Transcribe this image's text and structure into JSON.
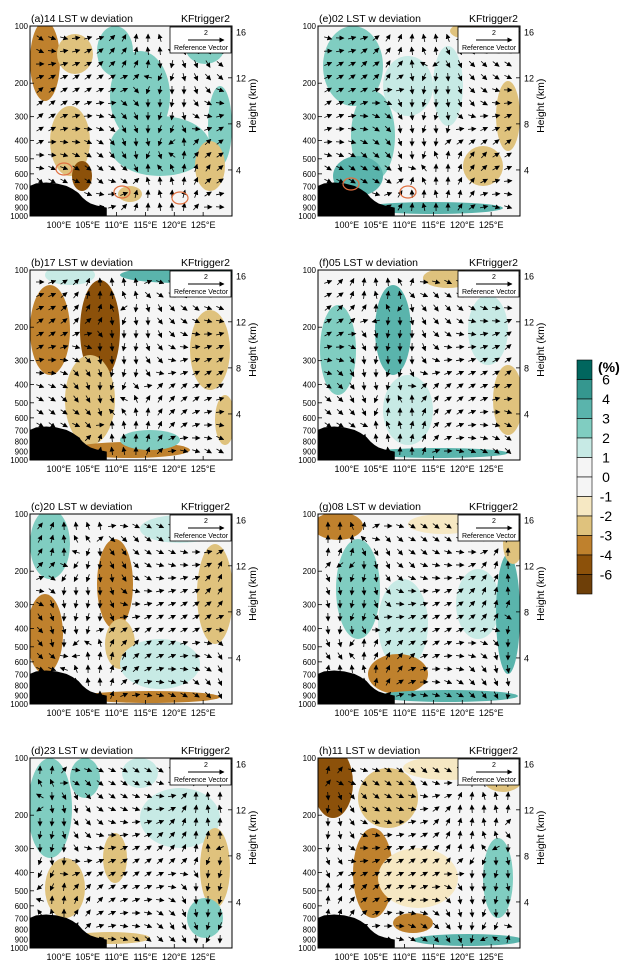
{
  "figure": {
    "colorbar": {
      "unit": "(%)",
      "labels": [
        "6",
        "4",
        "3",
        "2",
        "1",
        "0",
        "-1",
        "-2",
        "-3",
        "-4",
        "-6"
      ],
      "colors": [
        "#01665e",
        "#35978f",
        "#5ab4ac",
        "#80cdc1",
        "#c7eae5",
        "#f5f5f5",
        "#f5f5f5",
        "#f6e8c3",
        "#dfc27d",
        "#bf812d",
        "#8c510a",
        "#6e3f08"
      ]
    },
    "pressure_ticks": [
      "100",
      "200",
      "300",
      "400",
      "500",
      "600",
      "700",
      "800",
      "900",
      "1000"
    ],
    "height_ticks": [
      "16",
      "12",
      "8",
      "4"
    ],
    "height_label": "Height (km)",
    "lon_ticks": [
      "100°E",
      "105°E",
      "110°E",
      "115°E",
      "120°E",
      "125°E"
    ],
    "reference_vector": {
      "value": "2",
      "label": "Reference Vector"
    },
    "model_label": "KFtrigger2",
    "circle_labels": [
      "L1",
      "L2",
      "L3"
    ]
  },
  "chart_data": [
    {
      "type": "heatmap",
      "panel": "a",
      "title": "(a)14 LST w deviation",
      "model": "KFtrigger2",
      "x_range": [
        95,
        130
      ],
      "x_unit": "°E",
      "y_range_hPa": [
        1000,
        100
      ],
      "y_scale": "log",
      "variable": "w deviation (%)",
      "overlay": "wind vectors",
      "annotations": [
        "L1",
        "L2",
        "L3"
      ]
    },
    {
      "type": "heatmap",
      "panel": "e",
      "title": "(e)02 LST w deviation",
      "model": "KFtrigger2",
      "x_range": [
        95,
        130
      ],
      "x_unit": "°E",
      "y_range_hPa": [
        1000,
        100
      ],
      "y_scale": "log",
      "variable": "w deviation (%)",
      "overlay": "wind vectors",
      "annotations": [
        "L1",
        "L2"
      ]
    },
    {
      "type": "heatmap",
      "panel": "b",
      "title": "(b)17 LST w deviation",
      "model": "KFtrigger2",
      "x_range": [
        95,
        130
      ],
      "x_unit": "°E",
      "y_range_hPa": [
        1000,
        100
      ],
      "y_scale": "log",
      "variable": "w deviation (%)",
      "overlay": "wind vectors"
    },
    {
      "type": "heatmap",
      "panel": "f",
      "title": "(f)05 LST w deviation",
      "model": "KFtrigger2",
      "x_range": [
        95,
        130
      ],
      "x_unit": "°E",
      "y_range_hPa": [
        1000,
        100
      ],
      "y_scale": "log",
      "variable": "w deviation (%)",
      "overlay": "wind vectors"
    },
    {
      "type": "heatmap",
      "panel": "c",
      "title": "(c)20 LST w deviation",
      "model": "KFtrigger2",
      "x_range": [
        95,
        130
      ],
      "x_unit": "°E",
      "y_range_hPa": [
        1000,
        100
      ],
      "y_scale": "log",
      "variable": "w deviation (%)",
      "overlay": "wind vectors"
    },
    {
      "type": "heatmap",
      "panel": "g",
      "title": "(g)08 LST w deviation",
      "model": "KFtrigger2",
      "x_range": [
        95,
        130
      ],
      "x_unit": "°E",
      "y_range_hPa": [
        1000,
        100
      ],
      "y_scale": "log",
      "variable": "w deviation (%)",
      "overlay": "wind vectors"
    },
    {
      "type": "heatmap",
      "panel": "d",
      "title": "(d)23 LST w deviation",
      "model": "KFtrigger2",
      "x_range": [
        95,
        130
      ],
      "x_unit": "°E",
      "y_range_hPa": [
        1000,
        100
      ],
      "y_scale": "log",
      "variable": "w deviation (%)",
      "overlay": "wind vectors"
    },
    {
      "type": "heatmap",
      "panel": "h",
      "title": "(h)11 LST w deviation",
      "model": "KFtrigger2",
      "x_range": [
        95,
        130
      ],
      "x_unit": "°E",
      "y_range_hPa": [
        1000,
        100
      ],
      "y_scale": "log",
      "variable": "w deviation (%)",
      "overlay": "wind vectors"
    }
  ]
}
